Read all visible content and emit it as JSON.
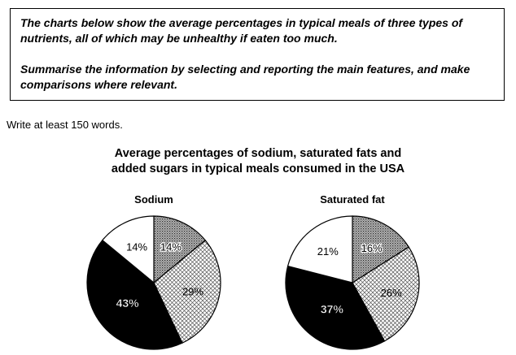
{
  "task": {
    "paragraph1": "The charts below show the average percentages in typical meals of three types of nutrients, all of which may be unhealthy if eaten too much.",
    "paragraph2": "Summarise the information by selecting and reporting the main features, and make comparisons where relevant."
  },
  "instruction": "Write at least 150 words.",
  "chart_title": {
    "line1": "Average percentages of sodium, saturated fats and",
    "line2": "added sugars in typical meals consumed in the USA"
  },
  "chart_data": [
    {
      "type": "pie",
      "title": "Sodium",
      "slices": [
        {
          "value": 14,
          "label": "14%",
          "fill": "dots"
        },
        {
          "value": 29,
          "label": "29%",
          "fill": "crosshatch"
        },
        {
          "value": 43,
          "label": "43%",
          "fill": "black"
        },
        {
          "value": 14,
          "label": "14%",
          "fill": "white"
        }
      ]
    },
    {
      "type": "pie",
      "title": "Saturated fat",
      "slices": [
        {
          "value": 16,
          "label": "16%",
          "fill": "dots"
        },
        {
          "value": 26,
          "label": "26%",
          "fill": "crosshatch"
        },
        {
          "value": 37,
          "label": "37%",
          "fill": "black"
        },
        {
          "value": 21,
          "label": "21%",
          "fill": "white"
        }
      ]
    }
  ]
}
